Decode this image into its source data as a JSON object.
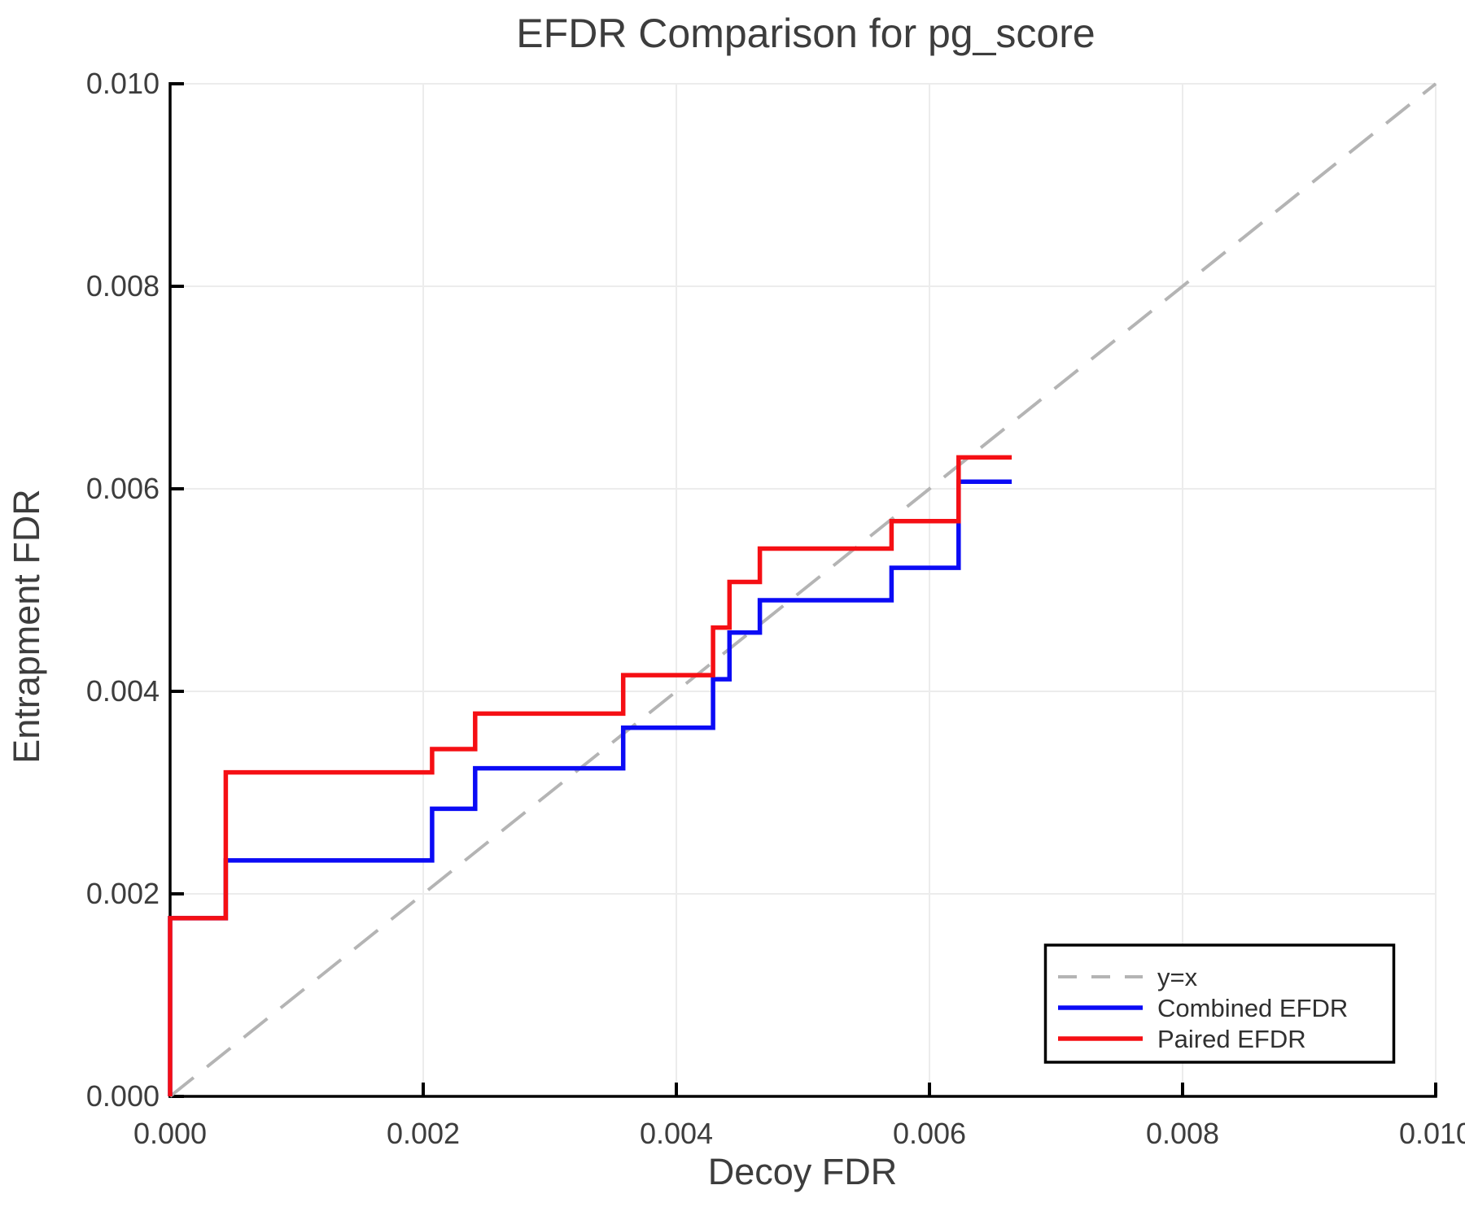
{
  "chart_data": {
    "type": "line",
    "line_style": "step-post",
    "title": "EFDR Comparison for pg_score",
    "xlabel": "Decoy FDR",
    "ylabel": "Entrapment FDR",
    "xlim": [
      0.0,
      0.01
    ],
    "ylim": [
      0.0,
      0.01
    ],
    "grid": true,
    "grid_color": "#ececec",
    "background_color": "#ffffff",
    "spine_color": "#000000",
    "legend_position": "lower right",
    "xtick_labels": [
      "0.000",
      "0.002",
      "0.004",
      "0.006",
      "0.008",
      "0.010"
    ],
    "xtick_values": [
      0.0,
      0.002,
      0.004,
      0.006,
      0.008,
      0.01
    ],
    "ytick_labels": [
      "0.000",
      "0.002",
      "0.004",
      "0.006",
      "0.008",
      "0.010"
    ],
    "ytick_values": [
      0.0,
      0.002,
      0.004,
      0.006,
      0.008,
      0.01
    ],
    "series": [
      {
        "name": "y=x",
        "color": "#b4b4b4",
        "style": "dashed",
        "points": [
          [
            0.0,
            0.0
          ],
          [
            0.01,
            0.01
          ]
        ]
      },
      {
        "name": "Combined EFDR",
        "color": "#0b0bf5",
        "style": "solid",
        "points": [
          [
            0.0,
            0.0
          ],
          [
            0.0,
            0.00176
          ],
          [
            0.00044,
            0.00176
          ],
          [
            0.00044,
            0.00233
          ],
          [
            0.00207,
            0.00233
          ],
          [
            0.00207,
            0.00284
          ],
          [
            0.00241,
            0.00284
          ],
          [
            0.00241,
            0.00324
          ],
          [
            0.00358,
            0.00324
          ],
          [
            0.00358,
            0.00364
          ],
          [
            0.00429,
            0.00364
          ],
          [
            0.00429,
            0.00412
          ],
          [
            0.00442,
            0.00412
          ],
          [
            0.00442,
            0.00458
          ],
          [
            0.00466,
            0.00458
          ],
          [
            0.00466,
            0.0049
          ],
          [
            0.0057,
            0.0049
          ],
          [
            0.0057,
            0.00522
          ],
          [
            0.00623,
            0.00522
          ],
          [
            0.00623,
            0.00607
          ],
          [
            0.00665,
            0.00607
          ]
        ]
      },
      {
        "name": "Paired EFDR",
        "color": "#f50f14",
        "style": "solid",
        "points": [
          [
            0.0,
            0.0
          ],
          [
            0.0,
            0.00176
          ],
          [
            0.00044,
            0.00176
          ],
          [
            0.00044,
            0.0032
          ],
          [
            0.00207,
            0.0032
          ],
          [
            0.00207,
            0.00343
          ],
          [
            0.00241,
            0.00343
          ],
          [
            0.00241,
            0.00378
          ],
          [
            0.00358,
            0.00378
          ],
          [
            0.00358,
            0.00416
          ],
          [
            0.00429,
            0.00416
          ],
          [
            0.00429,
            0.00463
          ],
          [
            0.00442,
            0.00463
          ],
          [
            0.00442,
            0.00508
          ],
          [
            0.00466,
            0.00508
          ],
          [
            0.00466,
            0.00541
          ],
          [
            0.0057,
            0.00541
          ],
          [
            0.0057,
            0.00568
          ],
          [
            0.00623,
            0.00568
          ],
          [
            0.00623,
            0.00631
          ],
          [
            0.00665,
            0.00631
          ]
        ]
      }
    ]
  }
}
